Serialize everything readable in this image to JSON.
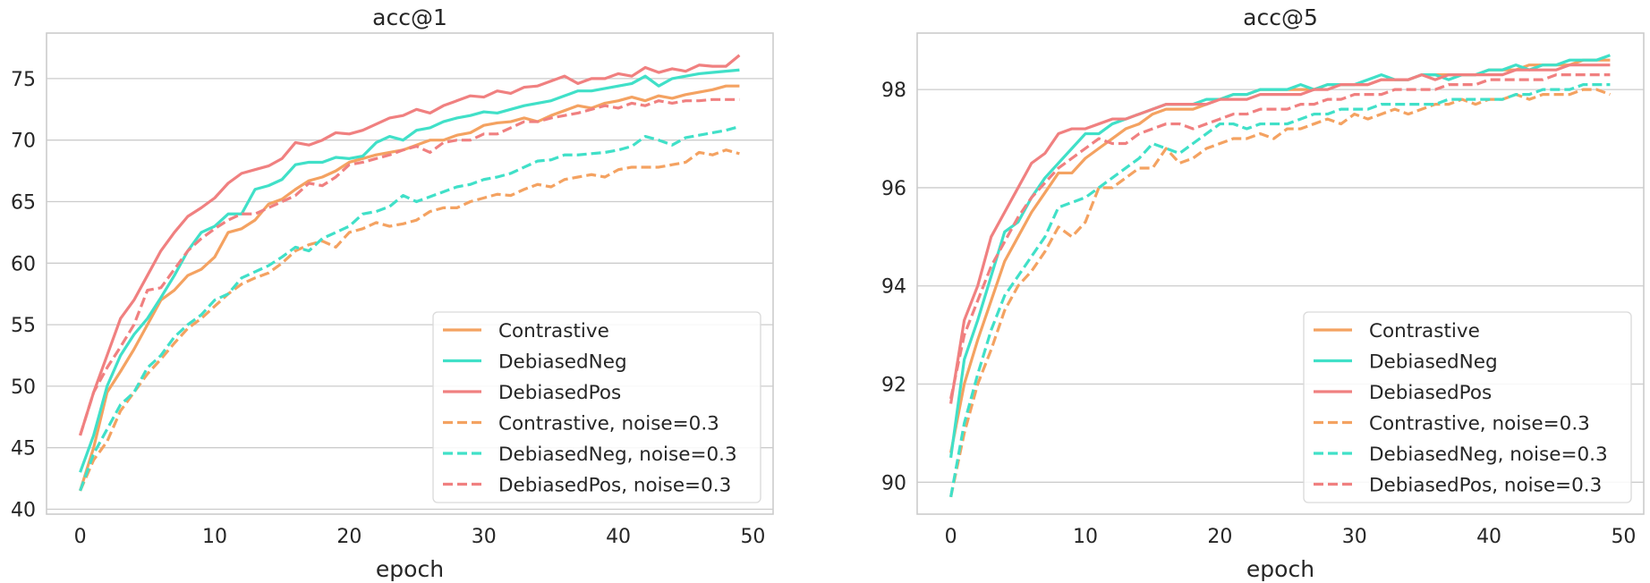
{
  "chart_data": [
    {
      "type": "line",
      "title": "acc@1",
      "xlabel": "epoch",
      "ylabel": "",
      "xlim": [
        -2.5,
        51.5
      ],
      "ylim": [
        39.6,
        78.7
      ],
      "xticks": [
        0,
        10,
        20,
        30,
        40,
        50
      ],
      "yticks": [
        40,
        45,
        50,
        55,
        60,
        65,
        70,
        75
      ],
      "grid": "horizontal",
      "legend_position": "lower-right",
      "series": [
        {
          "name": "Contrastive",
          "color": "#f4a261",
          "dash": "solid",
          "values": [
            41.5,
            45.0,
            49.5,
            51.2,
            53.0,
            55.0,
            57.0,
            57.8,
            59.0,
            59.5,
            60.5,
            62.5,
            62.8,
            63.5,
            64.8,
            65.2,
            66.0,
            66.7,
            67.0,
            67.5,
            68.2,
            68.5,
            68.8,
            69.0,
            69.2,
            69.6,
            70.0,
            70.0,
            70.4,
            70.6,
            71.2,
            71.4,
            71.5,
            71.8,
            71.5,
            72.0,
            72.4,
            72.8,
            72.6,
            73.0,
            73.2,
            73.5,
            73.2,
            73.6,
            73.4,
            73.7,
            73.9,
            74.1,
            74.4,
            74.4
          ]
        },
        {
          "name": "DebiasedNeg",
          "color": "#40e0c8",
          "dash": "solid",
          "values": [
            43.0,
            46.0,
            50.0,
            52.5,
            54.2,
            55.5,
            57.2,
            59.0,
            61.0,
            62.5,
            63.0,
            64.0,
            64.0,
            66.0,
            66.3,
            66.8,
            68.0,
            68.2,
            68.2,
            68.6,
            68.5,
            68.7,
            69.8,
            70.3,
            70.0,
            70.8,
            71.0,
            71.5,
            71.8,
            72.0,
            72.3,
            72.2,
            72.5,
            72.8,
            73.0,
            73.2,
            73.6,
            74.0,
            74.0,
            74.2,
            74.4,
            74.6,
            75.2,
            74.4,
            75.0,
            75.2,
            75.4,
            75.5,
            75.6,
            75.7
          ]
        },
        {
          "name": "DebiasedPos",
          "color": "#f08080",
          "dash": "solid",
          "values": [
            46.0,
            49.5,
            52.5,
            55.5,
            57.0,
            59.0,
            61.0,
            62.5,
            63.8,
            64.5,
            65.3,
            66.5,
            67.3,
            67.6,
            67.9,
            68.5,
            69.8,
            69.6,
            70.0,
            70.6,
            70.5,
            70.8,
            71.3,
            71.8,
            72.0,
            72.5,
            72.2,
            72.8,
            73.2,
            73.6,
            73.5,
            74.0,
            73.8,
            74.3,
            74.4,
            74.8,
            75.2,
            74.6,
            75.0,
            75.0,
            75.4,
            75.2,
            75.9,
            75.5,
            75.8,
            75.6,
            76.1,
            76.0,
            76.0,
            76.9
          ]
        },
        {
          "name": "Contrastive, noise=0.3",
          "color": "#f4a261",
          "dash": "dashed",
          "values": [
            41.5,
            44.0,
            45.5,
            48.0,
            49.5,
            51.0,
            52.2,
            53.5,
            54.7,
            55.5,
            56.5,
            57.5,
            58.3,
            58.8,
            59.2,
            60.0,
            61.0,
            61.5,
            61.8,
            61.3,
            62.5,
            62.8,
            63.3,
            63.0,
            63.2,
            63.5,
            64.2,
            64.5,
            64.5,
            65.0,
            65.3,
            65.6,
            65.5,
            66.0,
            66.4,
            66.2,
            66.8,
            67.0,
            67.2,
            67.0,
            67.6,
            67.8,
            67.8,
            67.8,
            68.0,
            68.2,
            69.0,
            68.8,
            69.2,
            68.9
          ]
        },
        {
          "name": "DebiasedNeg, noise=0.3",
          "color": "#40e0c8",
          "dash": "dashed",
          "values": [
            41.5,
            44.5,
            46.5,
            48.5,
            49.5,
            51.5,
            52.5,
            54.0,
            55.0,
            55.8,
            57.0,
            57.5,
            58.8,
            59.3,
            59.8,
            60.5,
            61.3,
            61.0,
            62.0,
            62.5,
            63.0,
            64.0,
            64.2,
            64.6,
            65.5,
            65.0,
            65.4,
            65.8,
            66.2,
            66.4,
            66.8,
            67.0,
            67.3,
            67.8,
            68.3,
            68.4,
            68.8,
            68.8,
            68.9,
            69.0,
            69.2,
            69.5,
            70.3,
            70.0,
            69.6,
            70.2,
            70.4,
            70.6,
            70.8,
            71.1
          ]
        },
        {
          "name": "DebiasedPos, noise=0.3",
          "color": "#f08080",
          "dash": "dashed",
          "values": [
            46.0,
            49.5,
            51.5,
            53.2,
            55.0,
            57.8,
            58.0,
            59.5,
            61.0,
            62.0,
            62.8,
            63.5,
            64.0,
            64.0,
            64.5,
            65.0,
            65.5,
            66.5,
            66.3,
            67.0,
            68.0,
            68.2,
            68.5,
            68.8,
            69.2,
            69.5,
            69.0,
            69.8,
            70.0,
            70.0,
            70.5,
            70.5,
            71.0,
            71.5,
            71.5,
            71.8,
            72.0,
            72.2,
            72.5,
            72.8,
            72.6,
            73.0,
            72.8,
            73.2,
            73.0,
            73.2,
            73.2,
            73.3,
            73.3,
            73.3
          ]
        }
      ]
    },
    {
      "type": "line",
      "title": "acc@5",
      "xlabel": "epoch",
      "ylabel": "",
      "xlim": [
        -2.5,
        51.5
      ],
      "ylim": [
        89.35,
        99.15
      ],
      "xticks": [
        0,
        10,
        20,
        30,
        40,
        50
      ],
      "yticks": [
        90,
        92,
        94,
        96,
        98
      ],
      "grid": "horizontal",
      "legend_position": "lower-right",
      "series": [
        {
          "name": "Contrastive",
          "color": "#f4a261",
          "dash": "solid",
          "values": [
            90.6,
            92.0,
            92.9,
            93.7,
            94.5,
            95.0,
            95.5,
            95.9,
            96.3,
            96.3,
            96.6,
            96.8,
            97.0,
            97.2,
            97.3,
            97.5,
            97.6,
            97.6,
            97.6,
            97.7,
            97.8,
            97.9,
            97.9,
            98.0,
            98.0,
            98.0,
            98.0,
            98.0,
            98.1,
            98.1,
            98.1,
            98.1,
            98.2,
            98.2,
            98.2,
            98.3,
            98.3,
            98.3,
            98.3,
            98.3,
            98.4,
            98.4,
            98.4,
            98.5,
            98.5,
            98.5,
            98.5,
            98.6,
            98.6,
            98.6
          ]
        },
        {
          "name": "DebiasedNeg",
          "color": "#40e0c8",
          "dash": "solid",
          "values": [
            90.5,
            92.5,
            93.3,
            94.2,
            95.1,
            95.3,
            95.8,
            96.2,
            96.5,
            96.8,
            97.1,
            97.1,
            97.3,
            97.4,
            97.5,
            97.6,
            97.7,
            97.7,
            97.7,
            97.8,
            97.8,
            97.9,
            97.9,
            98.0,
            98.0,
            98.0,
            98.1,
            98.0,
            98.1,
            98.1,
            98.1,
            98.2,
            98.3,
            98.2,
            98.2,
            98.3,
            98.3,
            98.2,
            98.3,
            98.3,
            98.4,
            98.4,
            98.5,
            98.4,
            98.5,
            98.5,
            98.6,
            98.6,
            98.6,
            98.7
          ]
        },
        {
          "name": "DebiasedPos",
          "color": "#f08080",
          "dash": "solid",
          "values": [
            91.6,
            93.3,
            94.0,
            95.0,
            95.5,
            96.0,
            96.5,
            96.7,
            97.1,
            97.2,
            97.2,
            97.3,
            97.4,
            97.4,
            97.5,
            97.6,
            97.7,
            97.7,
            97.7,
            97.7,
            97.8,
            97.8,
            97.8,
            97.9,
            97.9,
            97.9,
            97.9,
            98.0,
            98.0,
            98.1,
            98.1,
            98.1,
            98.2,
            98.2,
            98.2,
            98.3,
            98.2,
            98.3,
            98.3,
            98.3,
            98.3,
            98.3,
            98.4,
            98.4,
            98.4,
            98.4,
            98.5,
            98.5,
            98.5,
            98.5
          ]
        },
        {
          "name": "Contrastive, noise=0.3",
          "color": "#f4a261",
          "dash": "dashed",
          "values": [
            89.7,
            91.0,
            92.0,
            92.7,
            93.5,
            94.0,
            94.3,
            94.7,
            95.2,
            95.0,
            95.3,
            96.0,
            96.0,
            96.2,
            96.4,
            96.4,
            96.8,
            96.5,
            96.6,
            96.8,
            96.9,
            97.0,
            97.0,
            97.1,
            97.0,
            97.2,
            97.2,
            97.3,
            97.4,
            97.3,
            97.5,
            97.4,
            97.5,
            97.6,
            97.5,
            97.6,
            97.7,
            97.7,
            97.8,
            97.7,
            97.8,
            97.8,
            97.9,
            97.8,
            97.9,
            97.9,
            97.9,
            98.0,
            98.0,
            97.9
          ]
        },
        {
          "name": "DebiasedNeg, noise=0.3",
          "color": "#40e0c8",
          "dash": "dashed",
          "values": [
            89.7,
            91.2,
            92.2,
            93.1,
            93.8,
            94.2,
            94.6,
            95.0,
            95.6,
            95.7,
            95.8,
            96.0,
            96.2,
            96.4,
            96.6,
            96.9,
            96.8,
            96.7,
            96.9,
            97.1,
            97.3,
            97.3,
            97.2,
            97.3,
            97.3,
            97.3,
            97.4,
            97.5,
            97.5,
            97.6,
            97.6,
            97.6,
            97.7,
            97.7,
            97.7,
            97.7,
            97.7,
            97.8,
            97.8,
            97.8,
            97.8,
            97.8,
            97.9,
            97.9,
            98.0,
            98.0,
            98.0,
            98.1,
            98.1,
            98.1
          ]
        },
        {
          "name": "DebiasedPos, noise=0.3",
          "color": "#f08080",
          "dash": "dashed",
          "values": [
            91.7,
            93.0,
            93.7,
            94.4,
            94.9,
            95.4,
            95.8,
            96.1,
            96.4,
            96.6,
            96.8,
            97.0,
            96.9,
            96.9,
            97.1,
            97.2,
            97.3,
            97.3,
            97.2,
            97.3,
            97.4,
            97.5,
            97.5,
            97.6,
            97.6,
            97.6,
            97.7,
            97.7,
            97.8,
            97.8,
            97.9,
            97.9,
            97.9,
            98.0,
            98.0,
            98.0,
            98.0,
            98.1,
            98.1,
            98.1,
            98.2,
            98.2,
            98.2,
            98.2,
            98.2,
            98.3,
            98.3,
            98.3,
            98.3,
            98.3
          ]
        }
      ]
    }
  ]
}
